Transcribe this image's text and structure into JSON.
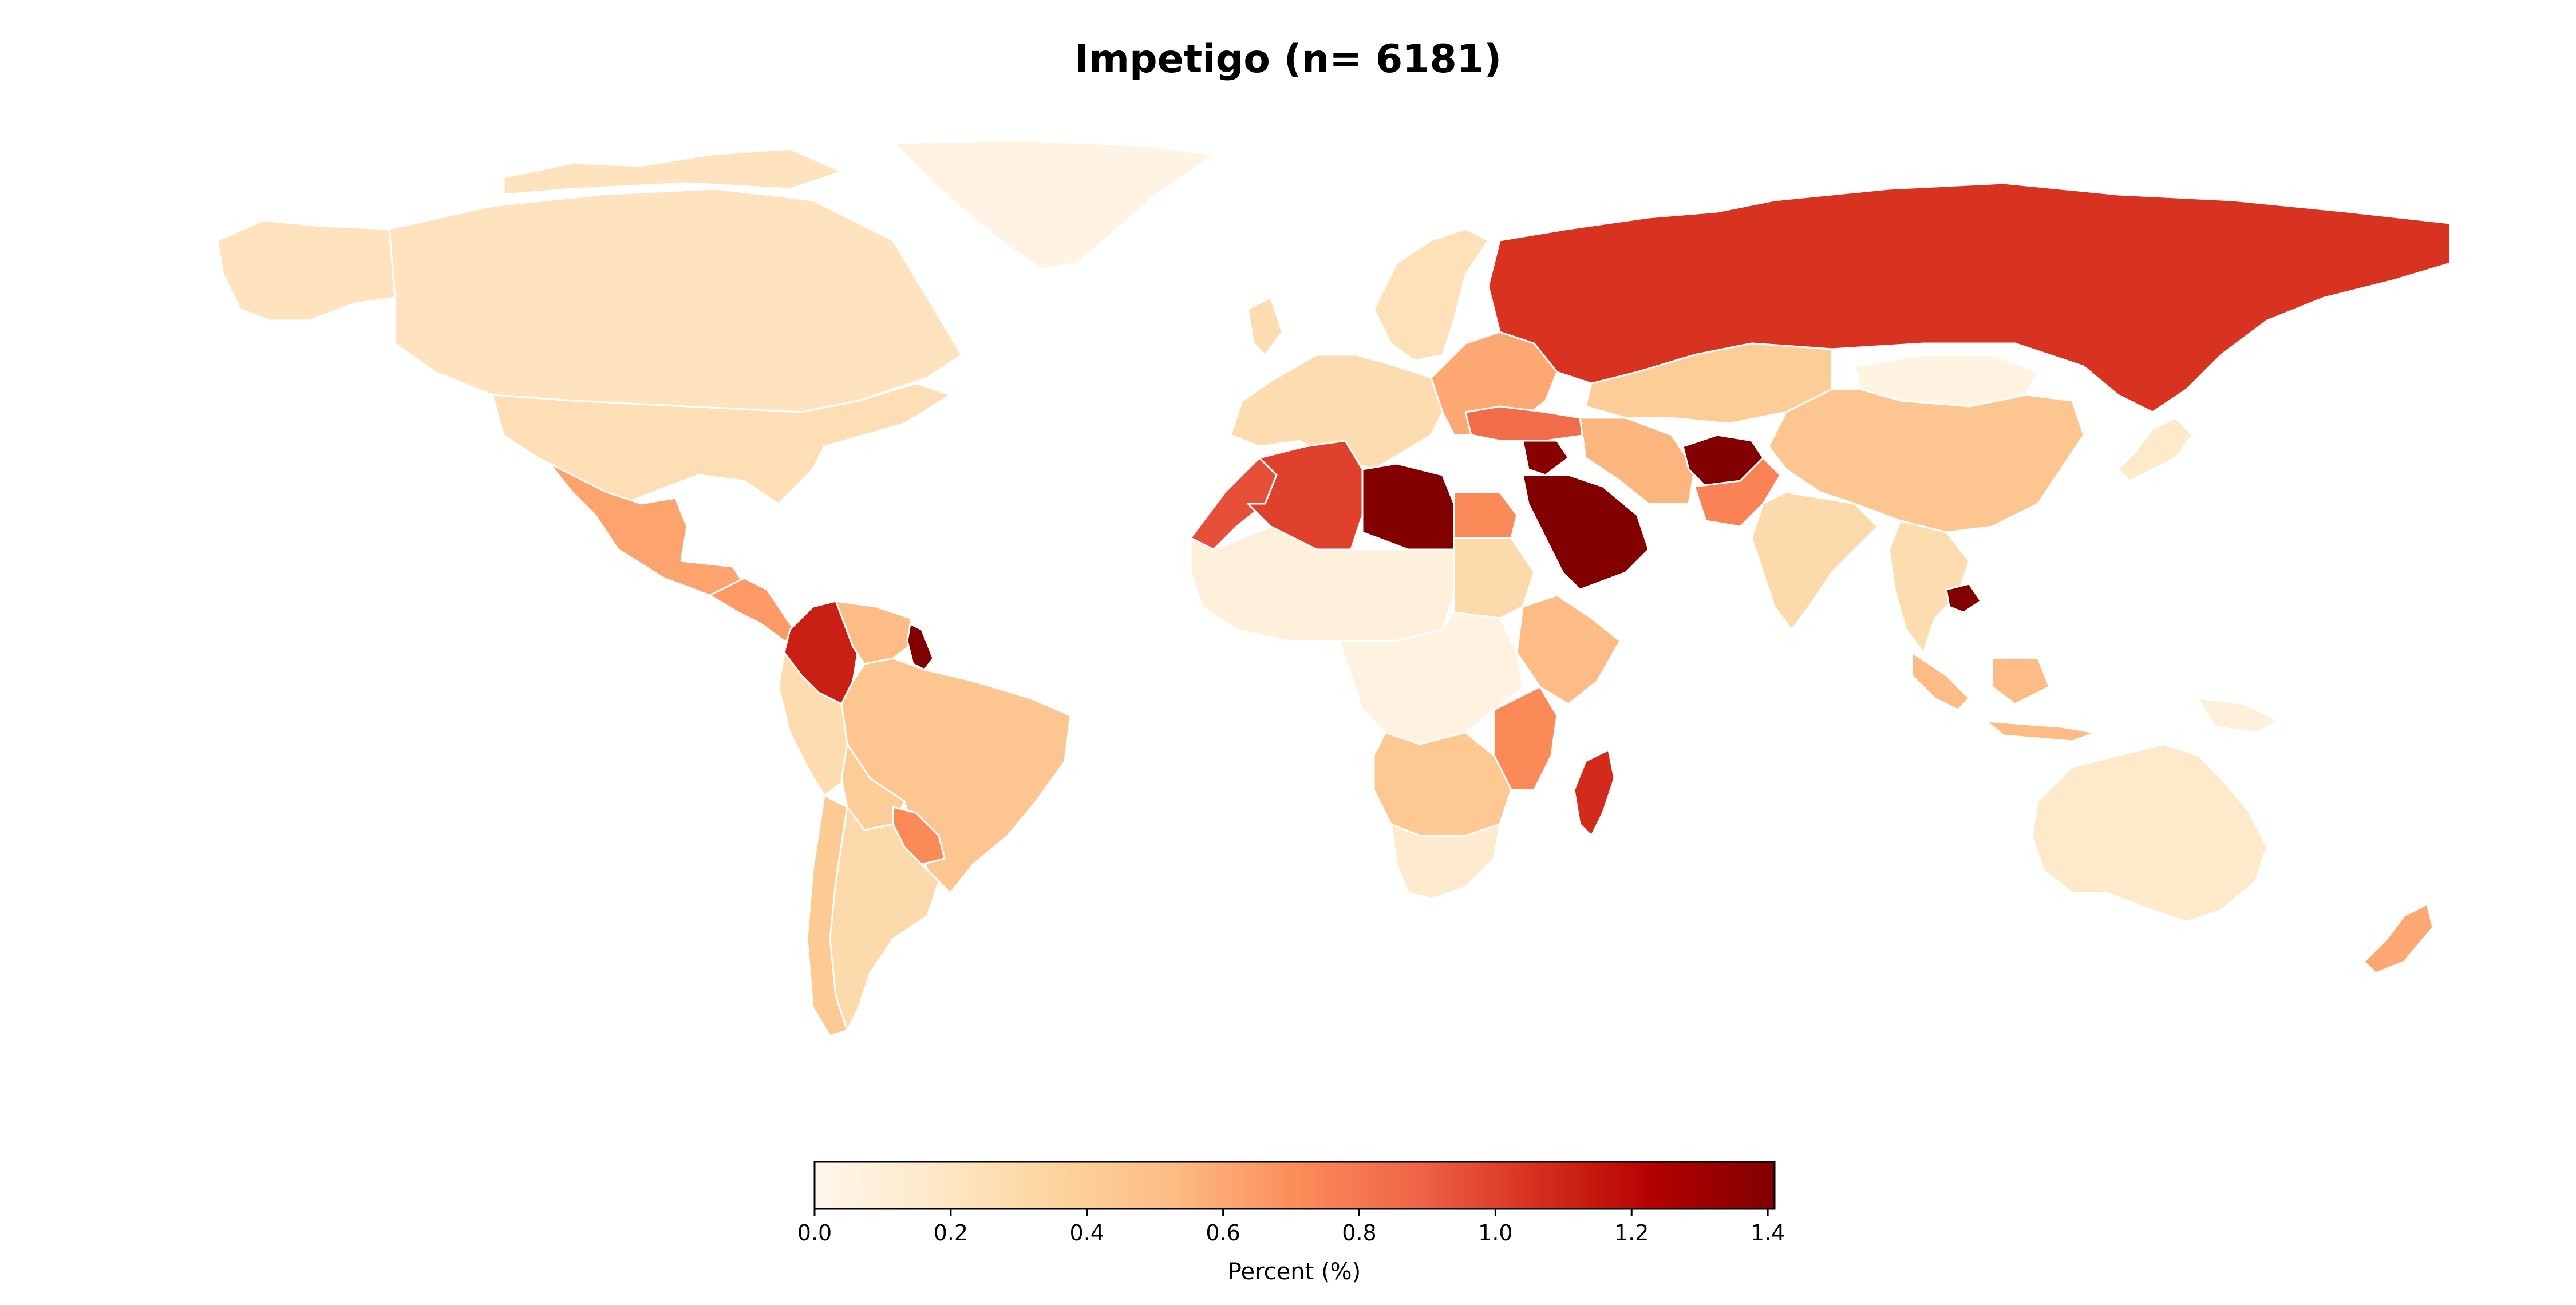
{
  "title": "Impetigo (n= 6181)",
  "colorbar": {
    "label": "Percent (%)",
    "min": 0.0,
    "max": 1.41,
    "ticks": [
      "0.0",
      "0.2",
      "0.4",
      "0.6",
      "0.8",
      "1.0",
      "1.2",
      "1.4"
    ],
    "colormap": "OrRd",
    "stops": [
      "#fff7ec",
      "#fee8c8",
      "#fdd49e",
      "#fdbb84",
      "#fc8d59",
      "#ef6548",
      "#d7301f",
      "#b30000",
      "#7f0000"
    ]
  },
  "regions": [
    {
      "name": "Canada",
      "value": 0.22
    },
    {
      "name": "Alaska",
      "value": 0.22
    },
    {
      "name": "United States",
      "value": 0.26
    },
    {
      "name": "Greenland",
      "value": 0.04
    },
    {
      "name": "Mexico",
      "value": 0.62
    },
    {
      "name": "Central America",
      "value": 0.66
    },
    {
      "name": "Colombia",
      "value": 1.12
    },
    {
      "name": "Venezuela",
      "value": 0.52
    },
    {
      "name": "Guyana",
      "value": 1.4
    },
    {
      "name": "Brazil",
      "value": 0.45
    },
    {
      "name": "Peru",
      "value": 0.28
    },
    {
      "name": "Bolivia",
      "value": 0.4
    },
    {
      "name": "Paraguay",
      "value": 0.72
    },
    {
      "name": "Argentina",
      "value": 0.3
    },
    {
      "name": "Chile",
      "value": 0.42
    },
    {
      "name": "Western Europe",
      "value": 0.28
    },
    {
      "name": "Scandinavia",
      "value": 0.24
    },
    {
      "name": "Eastern Europe",
      "value": 0.6
    },
    {
      "name": "Russia",
      "value": 1.05
    },
    {
      "name": "Morocco",
      "value": 0.95
    },
    {
      "name": "Algeria",
      "value": 1.0
    },
    {
      "name": "Libya",
      "value": 1.4
    },
    {
      "name": "Egypt",
      "value": 0.72
    },
    {
      "name": "Sahel",
      "value": 0.08
    },
    {
      "name": "Sudan",
      "value": 0.3
    },
    {
      "name": "Ethiopia",
      "value": 0.52
    },
    {
      "name": "Central Africa",
      "value": 0.06
    },
    {
      "name": "Tanzania",
      "value": 0.72
    },
    {
      "name": "Southern Africa",
      "value": 0.44
    },
    {
      "name": "South Africa",
      "value": 0.14
    },
    {
      "name": "Madagascar",
      "value": 1.08
    },
    {
      "name": "Turkey",
      "value": 0.85
    },
    {
      "name": "Syria",
      "value": 1.38
    },
    {
      "name": "Saudi Arabia",
      "value": 1.4
    },
    {
      "name": "Iran",
      "value": 0.55
    },
    {
      "name": "Afghanistan",
      "value": 1.4
    },
    {
      "name": "Pakistan",
      "value": 0.75
    },
    {
      "name": "Kazakhstan",
      "value": 0.4
    },
    {
      "name": "Mongolia",
      "value": 0.05
    },
    {
      "name": "China",
      "value": 0.45
    },
    {
      "name": "India",
      "value": 0.3
    },
    {
      "name": "Southeast Asia",
      "value": 0.28
    },
    {
      "name": "Cambodia",
      "value": 1.4
    },
    {
      "name": "Indonesia",
      "value": 0.52
    },
    {
      "name": "Papua New Guinea",
      "value": 0.08
    },
    {
      "name": "Japan",
      "value": 0.16
    },
    {
      "name": "Australia",
      "value": 0.16
    },
    {
      "name": "New Zealand",
      "value": 0.6
    }
  ]
}
